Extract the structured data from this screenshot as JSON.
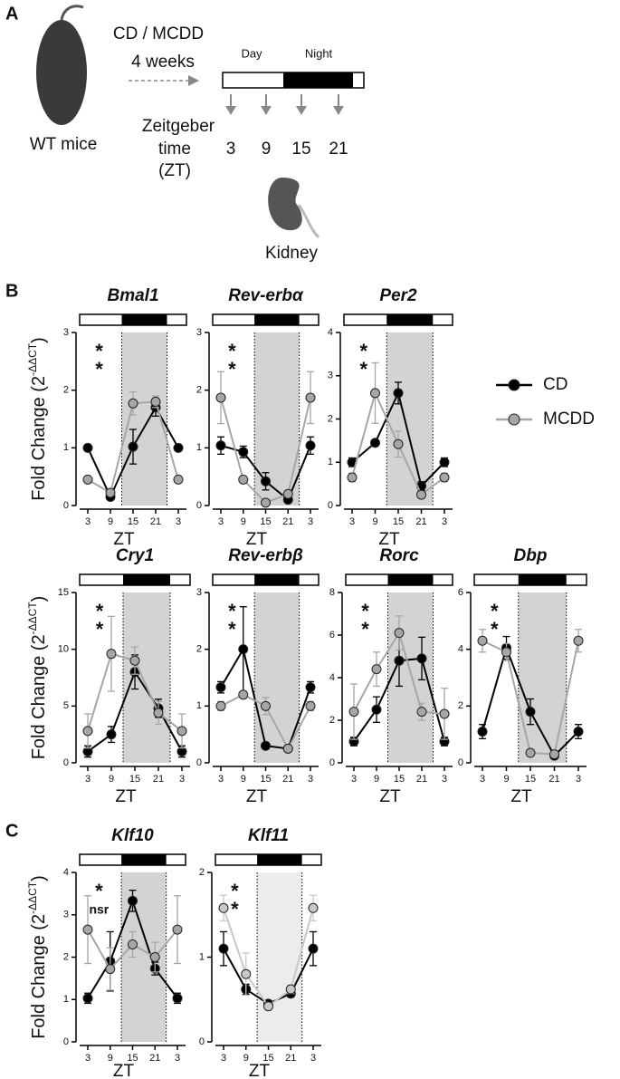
{
  "panels": [
    "A",
    "B",
    "C"
  ],
  "schematic": {
    "diet": "CD / MCDD",
    "duration": "4 weeks",
    "animal": "WT mice",
    "day": "Day",
    "night": "Night",
    "zt_lines": [
      "Zeitgeber",
      "time",
      "(ZT)"
    ],
    "zt_points": [
      "3",
      "9",
      "15",
      "21"
    ],
    "organ": "Kidney"
  },
  "chart_data": [
    {
      "type": "line",
      "title": "Bmal1",
      "ylabel": "Fold Change (2",
      "ylabel_superscript": "-ΔΔCT",
      "ylabel_end": ")",
      "categories": [
        "3",
        "9",
        "15",
        "21",
        "3"
      ],
      "xlabel": "ZT",
      "ylim": [
        0,
        3
      ],
      "yticks": [
        0,
        1,
        2,
        3
      ],
      "shade": "#d3d3d3",
      "annotations": [
        {
          "text": "*",
          "color": "#000000"
        },
        {
          "text": "*",
          "color": "#a6a6a6"
        }
      ],
      "series": [
        {
          "color": "#000000",
          "values": [
            1.0,
            0.15,
            1.02,
            1.7,
            1.0
          ],
          "errors": [
            0.05,
            0.05,
            0.3,
            0.15,
            0.05
          ]
        },
        {
          "color": "#a6a6a6",
          "values": [
            0.45,
            0.22,
            1.77,
            1.8,
            0.45
          ],
          "errors": [
            0.05,
            0.05,
            0.2,
            0.1,
            0.05
          ]
        }
      ]
    },
    {
      "type": "line",
      "title": "Rev-erbα",
      "categories": [
        "3",
        "9",
        "15",
        "21",
        "3"
      ],
      "xlabel": "ZT",
      "ylim": [
        0,
        3
      ],
      "yticks": [
        0,
        1,
        2,
        3
      ],
      "shade": "#d3d3d3",
      "annotations": [
        {
          "text": "*",
          "color": "#000000"
        },
        {
          "text": "*",
          "color": "#a6a6a6"
        }
      ],
      "series": [
        {
          "color": "#000000",
          "values": [
            1.04,
            0.93,
            0.42,
            0.1,
            1.04
          ],
          "errors": [
            0.15,
            0.1,
            0.15,
            0.05,
            0.15
          ]
        },
        {
          "color": "#a6a6a6",
          "values": [
            1.87,
            0.45,
            0.05,
            0.2,
            1.87
          ],
          "errors": [
            0.45,
            0.05,
            0.02,
            0.05,
            0.45
          ]
        }
      ]
    },
    {
      "type": "line",
      "title": "Per2",
      "categories": [
        "3",
        "9",
        "15",
        "21",
        "3"
      ],
      "xlabel": "ZT",
      "ylim": [
        0,
        4
      ],
      "yticks": [
        0,
        1,
        2,
        3,
        4
      ],
      "shade": "#d3d3d3",
      "annotations": [
        {
          "text": "*",
          "color": "#000000"
        },
        {
          "text": "*",
          "color": "#a6a6a6"
        }
      ],
      "series": [
        {
          "name": "CD",
          "color": "#000000",
          "values": [
            1.0,
            1.45,
            2.6,
            0.45,
            1.0
          ],
          "errors": [
            0.1,
            0.05,
            0.25,
            0.1,
            0.1
          ]
        },
        {
          "name": "MCDD",
          "color": "#a6a6a6",
          "values": [
            0.65,
            2.6,
            1.42,
            0.25,
            0.65
          ],
          "errors": [
            0.1,
            0.7,
            0.3,
            0.05,
            0.1
          ]
        }
      ]
    },
    {
      "type": "line",
      "title": "Cry1",
      "ylabel": "Fold Change (2",
      "ylabel_superscript": "-ΔΔCT",
      "ylabel_end": ")",
      "categories": [
        "3",
        "9",
        "15",
        "21",
        "3"
      ],
      "xlabel": "ZT",
      "ylim": [
        0,
        15
      ],
      "yticks": [
        0,
        5,
        10,
        15
      ],
      "shade": "#d3d3d3",
      "annotations": [
        {
          "text": "*",
          "color": "#000000"
        },
        {
          "text": "*",
          "color": "#a6a6a6"
        }
      ],
      "series": [
        {
          "color": "#000000",
          "values": [
            1.0,
            2.5,
            8.0,
            4.8,
            1.0
          ],
          "errors": [
            0.5,
            0.7,
            1.5,
            0.8,
            0.5
          ]
        },
        {
          "color": "#a6a6a6",
          "values": [
            2.8,
            9.6,
            9.0,
            4.4,
            2.8
          ],
          "errors": [
            1.5,
            3.3,
            1.2,
            1.0,
            1.5
          ]
        }
      ]
    },
    {
      "type": "line",
      "title": "Rev-erbβ",
      "categories": [
        "3",
        "9",
        "15",
        "21",
        "3"
      ],
      "xlabel": "ZT",
      "ylim": [
        0,
        3
      ],
      "yticks": [
        0,
        1,
        2,
        3
      ],
      "shade": "#d3d3d3",
      "annotations": [
        {
          "text": "*",
          "color": "#000000"
        },
        {
          "text": "*",
          "color": "#a6a6a6"
        }
      ],
      "series": [
        {
          "color": "#000000",
          "values": [
            1.33,
            2.0,
            0.3,
            0.25,
            1.33
          ],
          "errors": [
            0.1,
            0.75,
            0.02,
            0.02,
            0.1
          ]
        },
        {
          "color": "#a6a6a6",
          "values": [
            1.0,
            1.2,
            1.0,
            0.25,
            1.0
          ],
          "errors": [
            0.08,
            0.05,
            0.15,
            0.02,
            0.08
          ]
        }
      ]
    },
    {
      "type": "line",
      "title": "Rorc",
      "categories": [
        "3",
        "9",
        "15",
        "21",
        "3"
      ],
      "xlabel": "ZT",
      "ylim": [
        0,
        8
      ],
      "yticks": [
        0,
        2,
        4,
        6,
        8
      ],
      "shade": "#d3d3d3",
      "annotations": [
        {
          "text": "*",
          "color": "#000000"
        },
        {
          "text": "*",
          "color": "#a6a6a6"
        }
      ],
      "series": [
        {
          "color": "#000000",
          "values": [
            1.0,
            2.5,
            4.8,
            4.9,
            1.0
          ],
          "errors": [
            0.2,
            0.6,
            1.2,
            1.0,
            0.2
          ]
        },
        {
          "color": "#a6a6a6",
          "values": [
            2.4,
            4.4,
            6.1,
            2.4,
            2.3
          ],
          "errors": [
            1.3,
            0.8,
            0.8,
            0.4,
            1.2
          ]
        }
      ]
    },
    {
      "type": "line",
      "title": "Dbp",
      "categories": [
        "3",
        "9",
        "15",
        "21",
        "3"
      ],
      "xlabel": "ZT",
      "ylim": [
        0,
        6
      ],
      "yticks": [
        0,
        2,
        4,
        6
      ],
      "shade": "#d3d3d3",
      "annotations": [
        {
          "text": "*",
          "color": "#000000"
        },
        {
          "text": "*",
          "color": "#a6a6a6"
        }
      ],
      "series": [
        {
          "color": "#000000",
          "values": [
            1.1,
            4.05,
            1.8,
            0.25,
            1.1
          ],
          "errors": [
            0.25,
            0.4,
            0.45,
            0.1,
            0.25
          ]
        },
        {
          "color": "#a6a6a6",
          "values": [
            4.3,
            3.9,
            0.35,
            0.3,
            4.3
          ],
          "errors": [
            0.4,
            0.3,
            0.05,
            0.05,
            0.4
          ]
        }
      ]
    },
    {
      "type": "line",
      "title": "Klf10",
      "ylabel": "Fold Change (2",
      "ylabel_superscript": "-ΔΔCT",
      "ylabel_end": ")",
      "categories": [
        "3",
        "9",
        "15",
        "21",
        "3"
      ],
      "xlabel": "ZT",
      "ylim": [
        0,
        4
      ],
      "yticks": [
        0,
        1,
        2,
        3,
        4
      ],
      "shade": "#d3d3d3",
      "annotations": [
        {
          "text": "*",
          "color": "#000000"
        },
        {
          "text": "nsr",
          "color": "#a6a6a6"
        }
      ],
      "series": [
        {
          "color": "#000000",
          "values": [
            1.03,
            1.9,
            3.33,
            1.73,
            1.03
          ],
          "errors": [
            0.12,
            0.7,
            0.25,
            0.15,
            0.12
          ]
        },
        {
          "color": "#a6a6a6",
          "values": [
            2.65,
            1.72,
            2.3,
            2.0,
            2.65
          ],
          "errors": [
            0.8,
            0.5,
            0.3,
            0.35,
            0.8
          ]
        }
      ]
    },
    {
      "type": "line",
      "title": "Klf11",
      "categories": [
        "3",
        "9",
        "15",
        "21",
        "3"
      ],
      "xlabel": "ZT",
      "ylim": [
        0,
        2
      ],
      "yticks": [
        0,
        1,
        2
      ],
      "shade": "#ececec",
      "annotations": [
        {
          "text": "*",
          "color": "#000000"
        },
        {
          "text": "*",
          "color": "#a6a6a6"
        }
      ],
      "series": [
        {
          "color": "#000000",
          "values": [
            1.1,
            0.62,
            0.45,
            0.57,
            1.1
          ],
          "errors": [
            0.2,
            0.06,
            0.03,
            0.04,
            0.2
          ]
        },
        {
          "color": "#c8c8c8",
          "values": [
            1.58,
            0.8,
            0.42,
            0.62,
            1.58
          ],
          "errors": [
            0.15,
            0.25,
            0.03,
            0.05,
            0.15
          ]
        }
      ]
    }
  ]
}
